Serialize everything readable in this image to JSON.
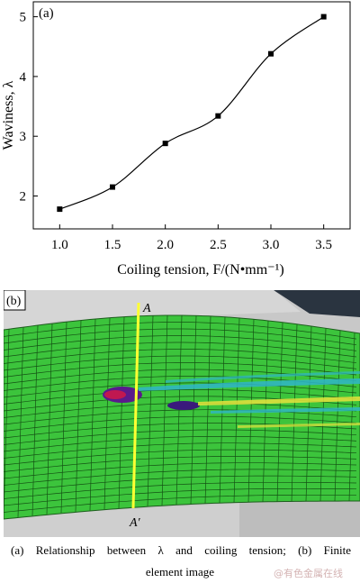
{
  "chart_data": {
    "type": "line",
    "panel_label": "(a)",
    "x": [
      1.0,
      1.5,
      2.0,
      2.5,
      3.0,
      3.5
    ],
    "y": [
      1.78,
      2.15,
      2.88,
      3.34,
      4.38,
      5.0
    ],
    "xticks": [
      "1.0",
      "1.5",
      "2.0",
      "2.5",
      "3.0",
      "3.5"
    ],
    "yticks": [
      "2",
      "3",
      "4",
      "5"
    ],
    "xlim": [
      0.75,
      3.75
    ],
    "ylim": [
      1.45,
      5.25
    ],
    "xlabel": "Coiling tension, F/(N•mm⁻¹)",
    "ylabel": "Waviness, λ",
    "grid": false,
    "marker": "square",
    "line_color": "#000000"
  },
  "fe_image": {
    "panel_label": "(b)",
    "label_top": "A",
    "label_bottom": "A′",
    "mesh_color": "#3cc43c",
    "section_line_color": "#ffff33"
  },
  "caption": {
    "line1": "(a)  Relationship  between  λ  and  coiling  tension;  (b)  Finite",
    "line2": "element image"
  },
  "watermark": "@有色金属在线"
}
